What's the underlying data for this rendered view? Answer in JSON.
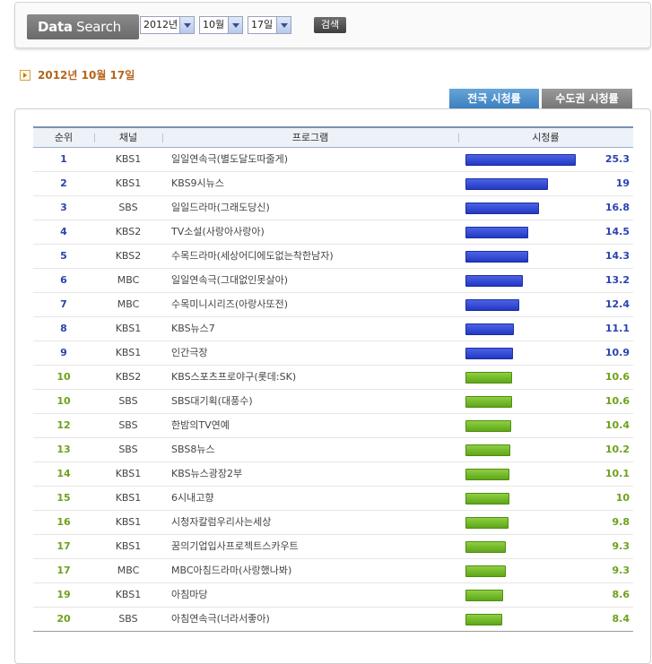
{
  "search": {
    "logo_bold": "Data",
    "logo_rest": " Search",
    "year": "2012년",
    "month": "10월",
    "day": "17일",
    "button": "검색"
  },
  "date_heading": "2012년 10월 17일",
  "tabs": {
    "national": "전국 시청률",
    "capital": "수도권 시청률"
  },
  "table": {
    "headers": {
      "rank": "순위",
      "channel": "채널",
      "program": "프로그램",
      "rating": "시청률"
    },
    "max_rating": 25.3,
    "rows": [
      {
        "rank": "1",
        "channel": "KBS1",
        "program": "일일연속극(별도달도따줄게)",
        "rating": "25.3",
        "value": 25.3,
        "tier": "blue"
      },
      {
        "rank": "2",
        "channel": "KBS1",
        "program": "KBS9시뉴스",
        "rating": "19",
        "value": 19,
        "tier": "blue"
      },
      {
        "rank": "3",
        "channel": "SBS",
        "program": "일일드라마(그래도당신)",
        "rating": "16.8",
        "value": 16.8,
        "tier": "blue"
      },
      {
        "rank": "4",
        "channel": "KBS2",
        "program": "TV소설(사랑아사랑아)",
        "rating": "14.5",
        "value": 14.5,
        "tier": "blue"
      },
      {
        "rank": "5",
        "channel": "KBS2",
        "program": "수목드라마(세상어디에도없는착한남자)",
        "rating": "14.3",
        "value": 14.3,
        "tier": "blue"
      },
      {
        "rank": "6",
        "channel": "MBC",
        "program": "일일연속극(그대없인못살아)",
        "rating": "13.2",
        "value": 13.2,
        "tier": "blue"
      },
      {
        "rank": "7",
        "channel": "MBC",
        "program": "수목미니시리즈(아랑사또전)",
        "rating": "12.4",
        "value": 12.4,
        "tier": "blue"
      },
      {
        "rank": "8",
        "channel": "KBS1",
        "program": "KBS뉴스7",
        "rating": "11.1",
        "value": 11.1,
        "tier": "blue"
      },
      {
        "rank": "9",
        "channel": "KBS1",
        "program": "인간극장",
        "rating": "10.9",
        "value": 10.9,
        "tier": "blue"
      },
      {
        "rank": "10",
        "channel": "KBS2",
        "program": "KBS스포츠프로야구(롯데:SK)",
        "rating": "10.6",
        "value": 10.6,
        "tier": "green"
      },
      {
        "rank": "10",
        "channel": "SBS",
        "program": "SBS대기획(대풍수)",
        "rating": "10.6",
        "value": 10.6,
        "tier": "green"
      },
      {
        "rank": "12",
        "channel": "SBS",
        "program": "한밤의TV연예",
        "rating": "10.4",
        "value": 10.4,
        "tier": "green"
      },
      {
        "rank": "13",
        "channel": "SBS",
        "program": "SBS8뉴스",
        "rating": "10.2",
        "value": 10.2,
        "tier": "green"
      },
      {
        "rank": "14",
        "channel": "KBS1",
        "program": "KBS뉴스광장2부",
        "rating": "10.1",
        "value": 10.1,
        "tier": "green"
      },
      {
        "rank": "15",
        "channel": "KBS1",
        "program": "6시내고향",
        "rating": "10",
        "value": 10,
        "tier": "green"
      },
      {
        "rank": "16",
        "channel": "KBS1",
        "program": "시청자칼럼우리사는세상",
        "rating": "9.8",
        "value": 9.8,
        "tier": "green"
      },
      {
        "rank": "17",
        "channel": "KBS1",
        "program": "꿈의기업입사프로젝트스카우트",
        "rating": "9.3",
        "value": 9.3,
        "tier": "green"
      },
      {
        "rank": "17",
        "channel": "MBC",
        "program": "MBC아침드라마(사랑했나봐)",
        "rating": "9.3",
        "value": 9.3,
        "tier": "green"
      },
      {
        "rank": "19",
        "channel": "KBS1",
        "program": "아침마당",
        "rating": "8.6",
        "value": 8.6,
        "tier": "green"
      },
      {
        "rank": "20",
        "channel": "SBS",
        "program": "아침연속극(너라서좋아)",
        "rating": "8.4",
        "value": 8.4,
        "tier": "green"
      }
    ]
  },
  "colors": {
    "blue_bar": "#2a3fd0",
    "green_bar": "#6fb52a",
    "rank_blue": "#2a43b0",
    "rank_green": "#6ea11b",
    "date_text": "#b5651d"
  }
}
